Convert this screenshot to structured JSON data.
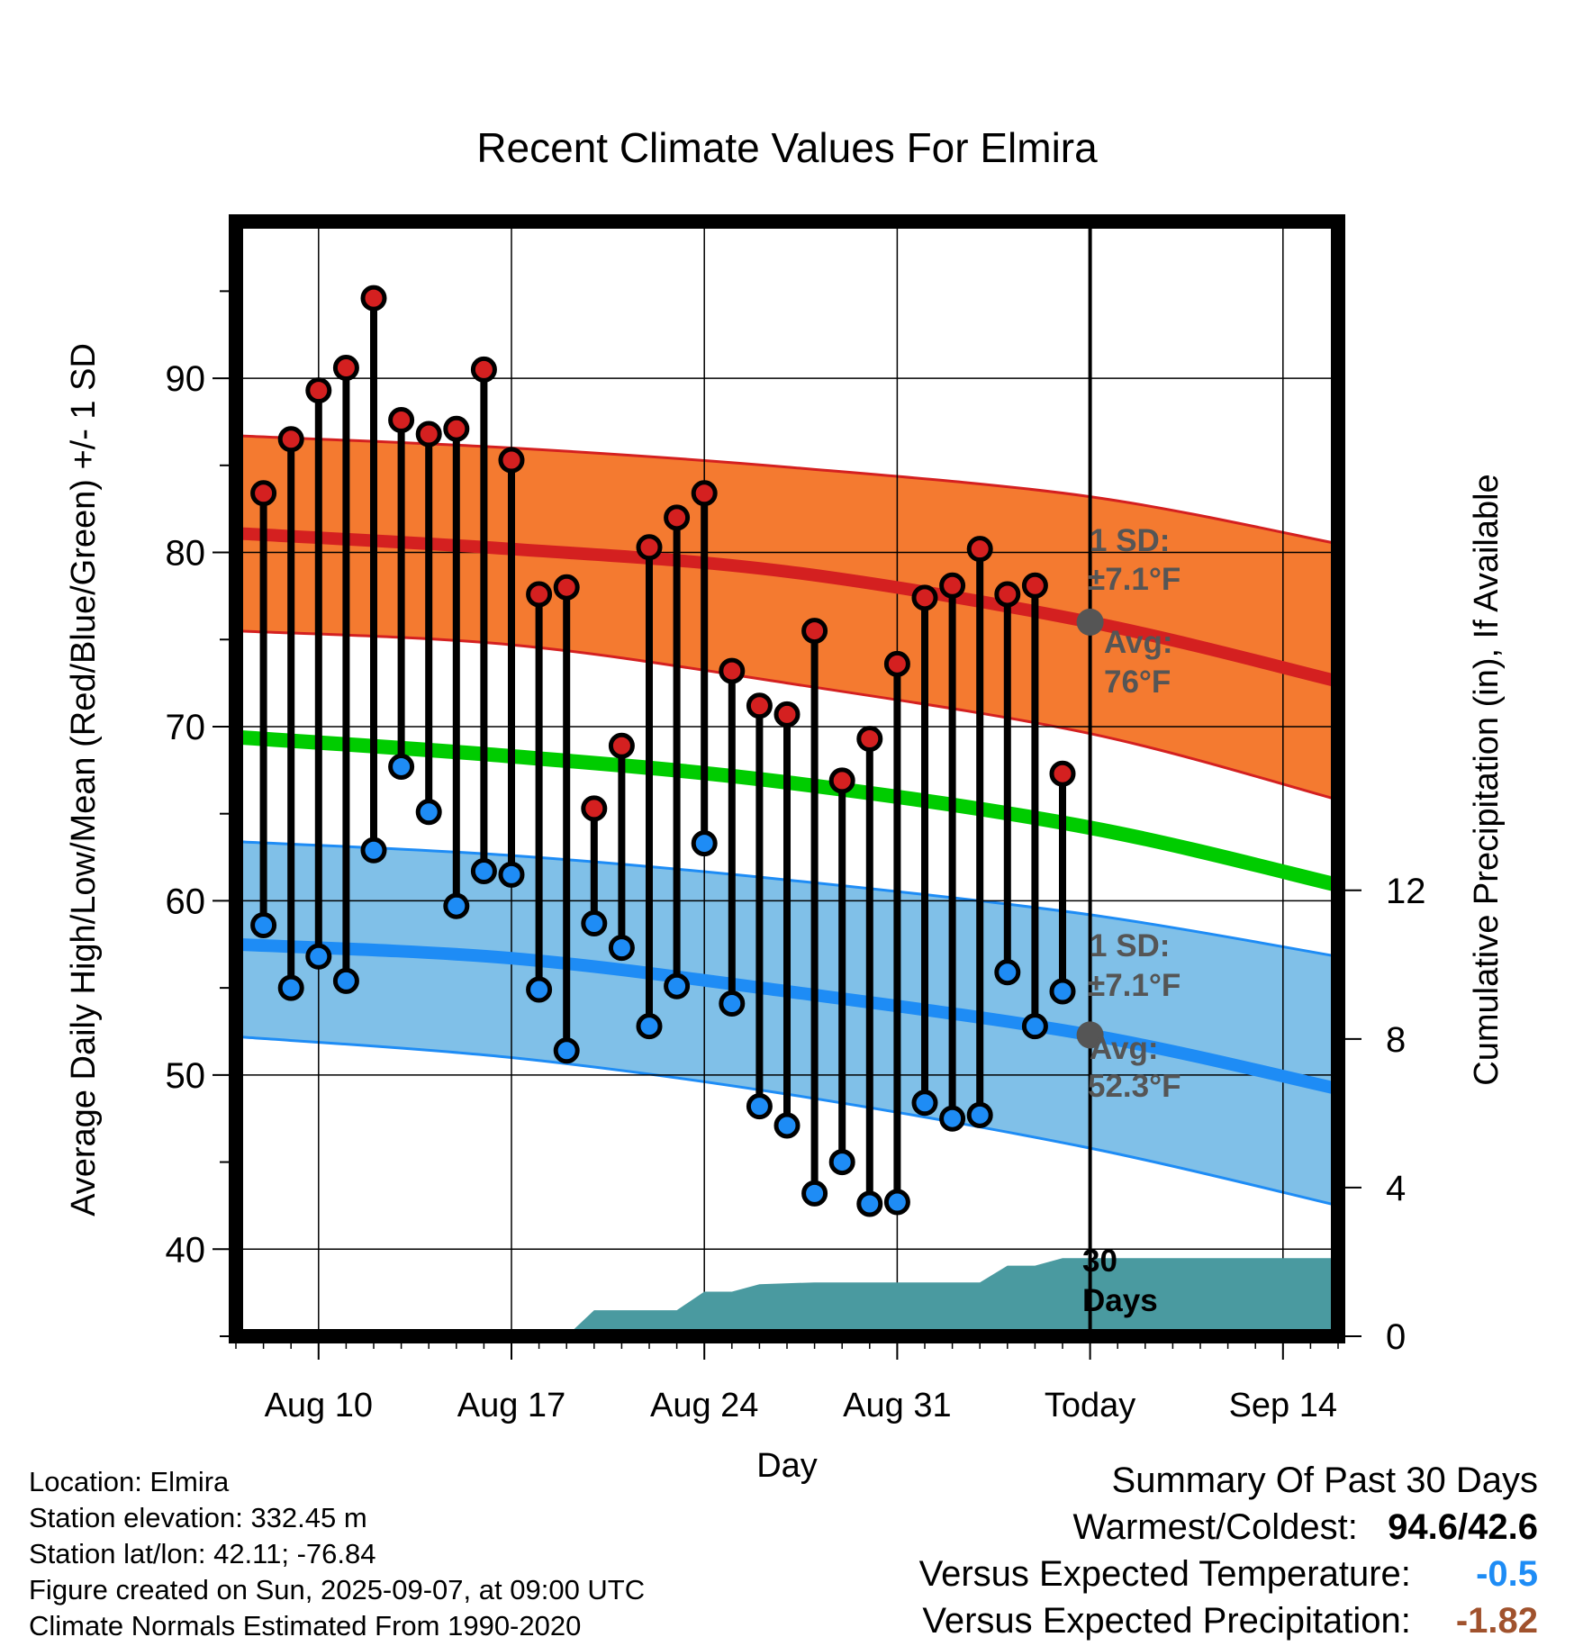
{
  "chart_data": {
    "type": "line",
    "title": "Recent Climate Values For Elmira",
    "xlabel": "Day",
    "ylabel": "Average Daily High/Low/Mean (Red/Blue/Green) +/- 1 SD",
    "y2label": "Cumulative Precipitation (in), If Available",
    "x_tick_labels": [
      "Aug 10",
      "Aug 17",
      "Aug 24",
      "Aug 31",
      "Today",
      "Sep 14"
    ],
    "x_tick_days": [
      "2025-08-10",
      "2025-08-17",
      "2025-08-24",
      "2025-08-31",
      "2025-09-07",
      "2025-09-14"
    ],
    "x_range": [
      "2025-08-07",
      "2025-09-16"
    ],
    "ylim": [
      35,
      99
    ],
    "y_ticks": [
      40,
      50,
      60,
      70,
      80,
      90
    ],
    "y2lim": [
      0,
      30
    ],
    "y2_ticks": [
      0,
      4,
      8,
      12
    ],
    "grid": true,
    "series": [
      {
        "name": "Daily High",
        "dates": [
          "2025-08-08",
          "2025-08-09",
          "2025-08-10",
          "2025-08-11",
          "2025-08-12",
          "2025-08-13",
          "2025-08-14",
          "2025-08-15",
          "2025-08-16",
          "2025-08-17",
          "2025-08-18",
          "2025-08-19",
          "2025-08-20",
          "2025-08-21",
          "2025-08-22",
          "2025-08-23",
          "2025-08-24",
          "2025-08-25",
          "2025-08-26",
          "2025-08-27",
          "2025-08-28",
          "2025-08-29",
          "2025-08-30",
          "2025-08-31",
          "2025-09-01",
          "2025-09-02",
          "2025-09-03",
          "2025-09-04",
          "2025-09-05",
          "2025-09-06"
        ],
        "values": [
          83.4,
          86.5,
          89.3,
          90.6,
          94.6,
          87.6,
          86.8,
          87.1,
          90.5,
          85.3,
          77.6,
          78.0,
          65.3,
          68.9,
          80.3,
          82.0,
          83.4,
          73.2,
          71.2,
          70.7,
          75.5,
          66.9,
          69.3,
          73.6,
          77.4,
          78.1,
          80.2,
          77.6,
          78.1,
          67.3
        ]
      },
      {
        "name": "Daily Low",
        "dates": [
          "2025-08-08",
          "2025-08-09",
          "2025-08-10",
          "2025-08-11",
          "2025-08-12",
          "2025-08-13",
          "2025-08-14",
          "2025-08-15",
          "2025-08-16",
          "2025-08-17",
          "2025-08-18",
          "2025-08-19",
          "2025-08-20",
          "2025-08-21",
          "2025-08-22",
          "2025-08-23",
          "2025-08-24",
          "2025-08-25",
          "2025-08-26",
          "2025-08-27",
          "2025-08-28",
          "2025-08-29",
          "2025-08-30",
          "2025-08-31",
          "2025-09-01",
          "2025-09-02",
          "2025-09-03",
          "2025-09-04",
          "2025-09-05",
          "2025-09-06"
        ],
        "values": [
          58.6,
          55.0,
          56.8,
          55.4,
          62.9,
          67.7,
          65.1,
          59.7,
          61.7,
          61.5,
          54.9,
          51.4,
          58.7,
          57.3,
          52.8,
          55.1,
          63.3,
          54.1,
          48.2,
          47.1,
          43.2,
          45.0,
          42.6,
          42.7,
          48.4,
          47.5,
          47.7,
          55.9,
          52.8,
          54.8
        ]
      },
      {
        "name": "Normal High",
        "dates": [
          "2025-08-07",
          "2025-08-17",
          "2025-08-27",
          "2025-09-07",
          "2025-09-16"
        ],
        "values": [
          81.1,
          80.2,
          78.9,
          76.0,
          72.6
        ]
      },
      {
        "name": "Normal High +1 SD",
        "dates": [
          "2025-08-07",
          "2025-08-17",
          "2025-08-27",
          "2025-09-07",
          "2025-09-16"
        ],
        "values": [
          86.7,
          86.0,
          84.9,
          83.2,
          80.5
        ]
      },
      {
        "name": "Normal High -1 SD",
        "dates": [
          "2025-08-07",
          "2025-08-17",
          "2025-08-27",
          "2025-09-07",
          "2025-09-16"
        ],
        "values": [
          75.5,
          74.7,
          72.5,
          69.6,
          65.8
        ]
      },
      {
        "name": "Normal Mean",
        "dates": [
          "2025-08-07",
          "2025-08-17",
          "2025-08-27",
          "2025-09-07",
          "2025-09-16"
        ],
        "values": [
          69.4,
          68.3,
          66.8,
          64.2,
          60.9
        ]
      },
      {
        "name": "Normal Low",
        "dates": [
          "2025-08-07",
          "2025-08-17",
          "2025-08-27",
          "2025-09-07",
          "2025-09-16"
        ],
        "values": [
          57.5,
          56.7,
          54.8,
          52.3,
          49.2
        ]
      },
      {
        "name": "Normal Low +1 SD",
        "dates": [
          "2025-08-07",
          "2025-08-17",
          "2025-08-27",
          "2025-09-07",
          "2025-09-16"
        ],
        "values": [
          63.4,
          62.6,
          61.2,
          59.2,
          56.8
        ]
      },
      {
        "name": "Normal Low -1 SD",
        "dates": [
          "2025-08-07",
          "2025-08-17",
          "2025-08-27",
          "2025-09-07",
          "2025-09-16"
        ],
        "values": [
          52.2,
          51.0,
          48.9,
          45.8,
          42.5
        ]
      },
      {
        "name": "Cumulative Precipitation",
        "dates": [
          "2025-08-19",
          "2025-08-20",
          "2025-08-23",
          "2025-08-24",
          "2025-08-25",
          "2025-08-26",
          "2025-08-28",
          "2025-09-03",
          "2025-09-04",
          "2025-09-05",
          "2025-09-06",
          "2025-09-16"
        ],
        "values": [
          0.0,
          0.7,
          0.7,
          1.2,
          1.2,
          1.4,
          1.45,
          1.45,
          1.9,
          1.9,
          2.1,
          2.1
        ]
      }
    ],
    "annotations": {
      "high_sd": "1 SD:",
      "high_sd_val": "±7.1°F",
      "high_avg": "Avg:",
      "high_avg_val": "76°F",
      "low_sd": "1 SD:",
      "low_sd_val": "±7.1°F",
      "low_avg": "Avg:",
      "low_avg_val": "52.3°F",
      "precip_days_1": "30",
      "precip_days_2": "Days"
    },
    "colors": {
      "high_band": "#f47a30",
      "high_line": "#d42020",
      "low_band": "#80c0e8",
      "low_line": "#1e8cf5",
      "mean_line": "#00cc00",
      "precip": "#4a9aa0",
      "high_dot": "#d42020",
      "low_dot": "#1e8cf5"
    }
  },
  "info": {
    "location": "Location: Elmira",
    "elevation": "Station elevation: 332.45 m",
    "latlon": "Station lat/lon: 42.11; -76.84",
    "created": "Figure created on Sun, 2025-09-07, at 09:00 UTC",
    "normals": "Climate Normals Estimated From 1990-2020"
  },
  "summary": {
    "title": "Summary Of Past 30 Days",
    "warm_cold_label": "Warmest/Coldest:",
    "warm_cold_value": "94.6/42.6",
    "temp_label": "Versus Expected Temperature:",
    "temp_value": "-0.5",
    "temp_color": "#1e8cf5",
    "precip_label": "Versus Expected Precipitation:",
    "precip_value": "-1.82",
    "precip_color": "#a0522d"
  }
}
